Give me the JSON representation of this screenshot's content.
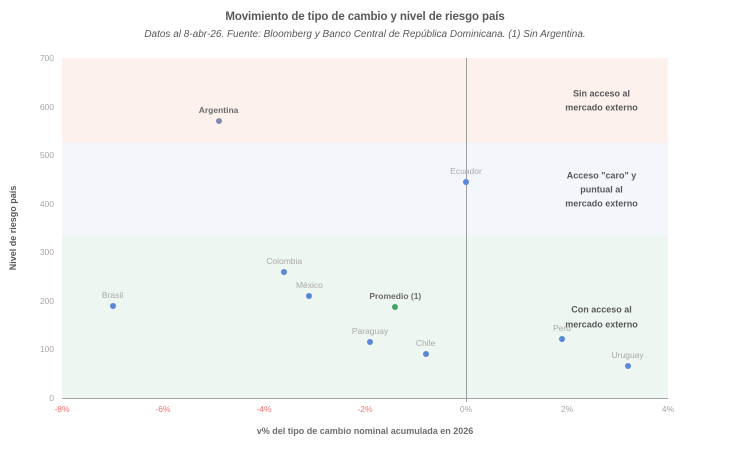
{
  "header": {
    "title": "Movimiento de tipo de cambio y nivel de riesgo país",
    "subtitle": "Datos al 8-abr-26. Fuente: Bloomberg y Banco Central de República Dominicana. (1) Sin Argentina."
  },
  "chart_data": {
    "type": "scatter",
    "title": "Movimiento de tipo de cambio y nivel de riesgo país",
    "subtitle": "Datos al 8-abr-26. Fuente: Bloomberg y Banco Central de República Dominicana. (1) Sin Argentina.",
    "xlabel": "v% del tipo de cambio nominal acumulada en 2026",
    "ylabel": "Nivel de riesgo país",
    "xlim": [
      -8,
      4
    ],
    "ylim": [
      0,
      700
    ],
    "grid": false,
    "legend": "none",
    "zero_line_x": 0,
    "x_ticks": [
      {
        "value": -8,
        "label": "-8%",
        "color": "#f87070"
      },
      {
        "value": -6,
        "label": "-6%",
        "color": "#f87070"
      },
      {
        "value": -4,
        "label": "-4%",
        "color": "#f87070"
      },
      {
        "value": -2,
        "label": "-2%",
        "color": "#f87070"
      },
      {
        "value": 0,
        "label": "0%",
        "color": "#a6a6a6"
      },
      {
        "value": 2,
        "label": "2%",
        "color": "#a6a6a6"
      },
      {
        "value": 4,
        "label": "4%",
        "color": "#a6a6a6"
      }
    ],
    "y_ticks": [
      {
        "value": 0,
        "label": "0"
      },
      {
        "value": 100,
        "label": "100"
      },
      {
        "value": 200,
        "label": "200"
      },
      {
        "value": 300,
        "label": "300"
      },
      {
        "value": 400,
        "label": "400"
      },
      {
        "value": 500,
        "label": "500"
      },
      {
        "value": 600,
        "label": "600"
      },
      {
        "value": 700,
        "label": "700"
      }
    ],
    "bands": [
      {
        "name": "sin-acceso",
        "from": 525,
        "to": 700,
        "color": "#fdf1ee",
        "annotation": "Sin acceso al\nmercado externo"
      },
      {
        "name": "acceso-caro",
        "from": 333,
        "to": 525,
        "color": "#f3f7fc",
        "annotation": "Acceso \"caro\" y\npuntual al\nmercado externo"
      },
      {
        "name": "con-acceso",
        "from": 0,
        "to": 333,
        "color": "#eef6f1",
        "annotation": "Con acceso al\nmercado externo"
      }
    ],
    "points": [
      {
        "name": "Argentina",
        "x": -4.9,
        "y": 570,
        "color": "#7e8daf",
        "label_style": "bold"
      },
      {
        "name": "Brasil",
        "x": -7.0,
        "y": 190,
        "color": "#5b87d8",
        "label_style": "normal"
      },
      {
        "name": "Colombia",
        "x": -3.6,
        "y": 260,
        "color": "#5b87d8",
        "label_style": "normal"
      },
      {
        "name": "México",
        "x": -3.1,
        "y": 210,
        "color": "#5b87d8",
        "label_style": "normal"
      },
      {
        "name": "Paraguay",
        "x": -1.9,
        "y": 115,
        "color": "#5b87d8",
        "label_style": "normal"
      },
      {
        "name": "Promedio (1)",
        "x": -1.4,
        "y": 187,
        "color": "#44a266",
        "label_style": "bold"
      },
      {
        "name": "Chile",
        "x": -0.8,
        "y": 91,
        "color": "#5b87d8",
        "label_style": "normal"
      },
      {
        "name": "Ecuador",
        "x": 0.0,
        "y": 445,
        "color": "#5b87d8",
        "label_style": "normal"
      },
      {
        "name": "Perú",
        "x": 1.9,
        "y": 122,
        "color": "#5b87d8",
        "label_style": "normal"
      },
      {
        "name": "Uruguay",
        "x": 3.2,
        "y": 65,
        "color": "#5b87d8",
        "label_style": "normal"
      }
    ],
    "colors": {
      "point_blue": "#5b87d8",
      "point_green": "#44a266",
      "point_argentina": "#7e8daf",
      "negative_tick": "#f87070",
      "neutral_tick": "#a6a6a6",
      "band_pink": "#fdf1ee",
      "band_blue": "#f3f7fc",
      "band_green": "#eef6f1",
      "text_dark": "#595959",
      "text_gray": "#a9a9a9",
      "axis_line": "#a6a6a6"
    }
  }
}
